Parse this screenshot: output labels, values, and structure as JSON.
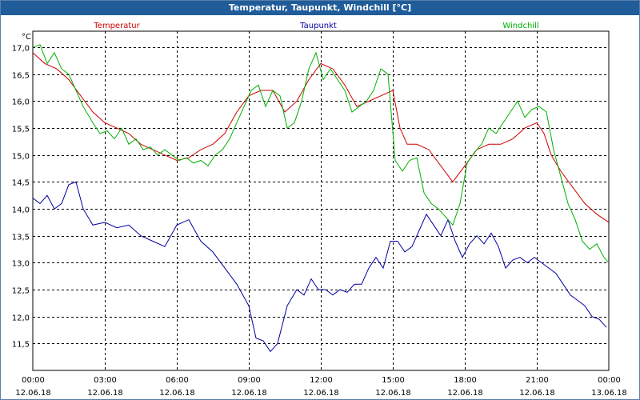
{
  "window": {
    "title": "Temperatur, Taupunkt, Windchill [°C]"
  },
  "colors": {
    "temperature": "#d00000",
    "dewpoint": "#0000a0",
    "windchill": "#00b000",
    "titlebar": "#1f5c99"
  },
  "chart_data": {
    "type": "line",
    "title": "Temperatur, Taupunkt, Windchill [°C]",
    "ylabel": "°C",
    "xlabel": "",
    "ylim": [
      11.0,
      17.3
    ],
    "xlim": [
      0,
      24
    ],
    "grid": true,
    "yticks": [
      11.5,
      12.0,
      12.5,
      13.0,
      13.5,
      14.0,
      14.5,
      15.0,
      15.5,
      16.0,
      16.5,
      17.0
    ],
    "ytick_labels": [
      "11,5",
      "12,0",
      "12,5",
      "13,0",
      "13,5",
      "14,0",
      "14,5",
      "15,0",
      "15,5",
      "16,0",
      "16,5",
      "17,0"
    ],
    "xtick_labels": [
      {
        "time": "00:00",
        "date": "12.06.18"
      },
      {
        "time": "03:00",
        "date": "12.06.18"
      },
      {
        "time": "06:00",
        "date": "12.06.18"
      },
      {
        "time": "09:00",
        "date": "12.06.18"
      },
      {
        "time": "12:00",
        "date": "12.06.18"
      },
      {
        "time": "15:00",
        "date": "12.06.18"
      },
      {
        "time": "18:00",
        "date": "12.06.18"
      },
      {
        "time": "21:00",
        "date": "12.06.18"
      },
      {
        "time": "00:00",
        "date": "13.06.18"
      }
    ],
    "series": [
      {
        "name": "Temperatur",
        "x": [
          0,
          0.5,
          1,
          1.5,
          2,
          2.5,
          3,
          3.5,
          4,
          4.5,
          5,
          5.5,
          6,
          6.5,
          7,
          7.5,
          8,
          8.5,
          9,
          9.5,
          10,
          10.5,
          11,
          11.5,
          12,
          12.5,
          13,
          13.5,
          14,
          14.5,
          15,
          15.3,
          15.6,
          16,
          16.5,
          17,
          17.5,
          18,
          18.5,
          19,
          19.5,
          20,
          20.5,
          21,
          21.3,
          21.6,
          22,
          22.5,
          23,
          23.5,
          24
        ],
        "values": [
          16.9,
          16.7,
          16.6,
          16.4,
          16.1,
          15.8,
          15.6,
          15.5,
          15.4,
          15.2,
          15.1,
          15.0,
          14.9,
          14.95,
          15.1,
          15.2,
          15.4,
          15.8,
          16.1,
          16.2,
          16.2,
          15.8,
          16.0,
          16.4,
          16.7,
          16.6,
          16.3,
          15.9,
          16.0,
          16.1,
          16.2,
          15.5,
          15.2,
          15.2,
          15.1,
          14.8,
          14.5,
          14.8,
          15.1,
          15.2,
          15.2,
          15.3,
          15.5,
          15.6,
          15.4,
          15.0,
          14.7,
          14.4,
          14.1,
          13.9,
          13.75
        ]
      },
      {
        "name": "Taupunkt",
        "x": [
          0,
          0.3,
          0.6,
          0.9,
          1.2,
          1.5,
          1.8,
          2.1,
          2.5,
          3,
          3.5,
          4,
          4.5,
          5,
          5.5,
          6,
          6.5,
          7,
          7.5,
          8,
          8.5,
          9,
          9.3,
          9.6,
          9.9,
          10.2,
          10.6,
          11,
          11.3,
          11.6,
          11.9,
          12.2,
          12.5,
          12.8,
          13.1,
          13.4,
          13.7,
          14,
          14.3,
          14.6,
          14.9,
          15.2,
          15.5,
          15.8,
          16.1,
          16.4,
          16.7,
          17,
          17.3,
          17.6,
          17.9,
          18.2,
          18.5,
          18.8,
          19.1,
          19.4,
          19.7,
          20,
          20.3,
          20.6,
          20.9,
          21.2,
          21.5,
          21.8,
          22.1,
          22.4,
          22.7,
          23,
          23.3,
          23.6,
          23.9
        ],
        "values": [
          14.2,
          14.1,
          14.25,
          14.0,
          14.1,
          14.45,
          14.5,
          14.0,
          13.7,
          13.75,
          13.65,
          13.7,
          13.5,
          13.4,
          13.3,
          13.7,
          13.8,
          13.4,
          13.2,
          12.9,
          12.6,
          12.2,
          11.6,
          11.55,
          11.35,
          11.5,
          12.2,
          12.5,
          12.4,
          12.7,
          12.5,
          12.5,
          12.4,
          12.5,
          12.45,
          12.6,
          12.6,
          12.9,
          13.1,
          12.9,
          13.4,
          13.4,
          13.2,
          13.3,
          13.6,
          13.9,
          13.7,
          13.5,
          13.8,
          13.4,
          13.1,
          13.35,
          13.5,
          13.35,
          13.55,
          13.3,
          12.9,
          13.05,
          13.1,
          13.0,
          13.1,
          13.0,
          12.9,
          12.8,
          12.6,
          12.4,
          12.3,
          12.2,
          12.0,
          11.95,
          11.8
        ]
      },
      {
        "name": "Windchill",
        "x": [
          0,
          0.3,
          0.6,
          0.9,
          1.2,
          1.5,
          1.8,
          2.1,
          2.5,
          2.8,
          3.1,
          3.4,
          3.7,
          4,
          4.3,
          4.6,
          4.9,
          5.2,
          5.5,
          5.8,
          6.1,
          6.4,
          6.7,
          7,
          7.3,
          7.6,
          7.9,
          8.2,
          8.5,
          8.8,
          9.1,
          9.4,
          9.7,
          10,
          10.3,
          10.6,
          10.9,
          11.2,
          11.5,
          11.8,
          12.1,
          12.4,
          12.7,
          13,
          13.3,
          13.6,
          13.9,
          14.2,
          14.5,
          14.8,
          15.1,
          15.4,
          15.7,
          16,
          16.3,
          16.6,
          16.9,
          17.2,
          17.5,
          17.8,
          18.1,
          18.4,
          18.7,
          19,
          19.3,
          19.6,
          19.9,
          20.2,
          20.5,
          20.8,
          21.1,
          21.4,
          21.7,
          22,
          22.3,
          22.6,
          22.9,
          23.2,
          23.5,
          23.8,
          24
        ],
        "values": [
          17.0,
          17.05,
          16.7,
          16.9,
          16.6,
          16.5,
          16.2,
          15.9,
          15.6,
          15.4,
          15.45,
          15.3,
          15.5,
          15.2,
          15.3,
          15.1,
          15.15,
          15.0,
          15.1,
          15.0,
          14.9,
          14.95,
          14.85,
          14.9,
          14.8,
          15.0,
          15.1,
          15.3,
          15.6,
          15.9,
          16.2,
          16.3,
          15.9,
          16.2,
          16.1,
          15.5,
          15.6,
          16.0,
          16.6,
          16.9,
          16.4,
          16.6,
          16.4,
          16.2,
          15.8,
          15.9,
          16.0,
          16.2,
          16.6,
          16.5,
          14.9,
          14.7,
          14.9,
          14.95,
          14.3,
          14.1,
          14.0,
          13.85,
          13.7,
          14.1,
          14.85,
          15.05,
          15.2,
          15.5,
          15.4,
          15.6,
          15.8,
          16.0,
          15.7,
          15.85,
          15.9,
          15.8,
          15.1,
          14.6,
          14.1,
          13.8,
          13.4,
          13.25,
          13.35,
          13.1,
          13.0
        ]
      }
    ]
  }
}
